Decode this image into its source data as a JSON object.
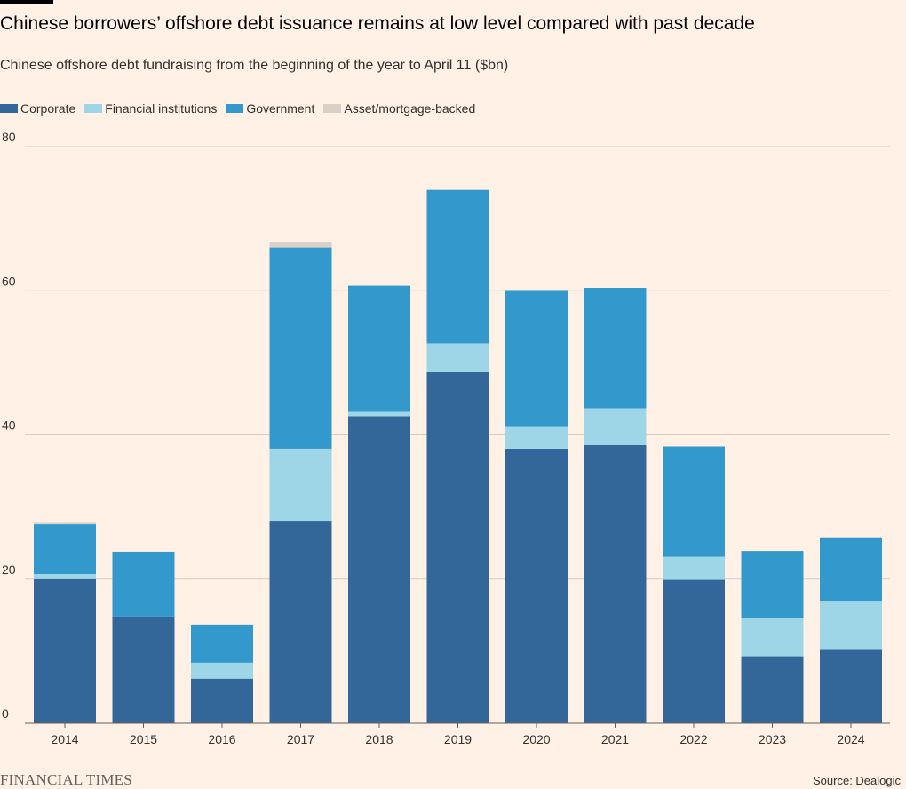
{
  "header": {
    "title": "Chinese borrowers’ offshore debt issuance remains at low level compared with past decade",
    "subtitle": "Chinese offshore debt fundraising from the beginning of the year to April 11 ($bn)"
  },
  "footer": {
    "brand": "FINANCIAL TIMES",
    "source": "Source: Dealogic"
  },
  "chart_data": {
    "type": "bar",
    "stacked": true,
    "title": "Chinese borrowers’ offshore debt issuance remains at low level compared with past decade",
    "subtitle": "Chinese offshore debt fundraising from the beginning of the year to April 11 ($bn)",
    "xlabel": "",
    "ylabel": "",
    "ylim": [
      0,
      80
    ],
    "yticks": [
      0,
      20,
      40,
      60,
      80
    ],
    "grid": true,
    "legend_position": "top-left",
    "categories": [
      "2014",
      "2015",
      "2016",
      "2017",
      "2018",
      "2019",
      "2020",
      "2021",
      "2022",
      "2023",
      "2024"
    ],
    "series": [
      {
        "name": "Corporate",
        "color": "#336699",
        "values": [
          20.0,
          14.8,
          6.2,
          28.1,
          42.6,
          48.7,
          38.1,
          38.6,
          19.9,
          9.3,
          10.3
        ]
      },
      {
        "name": "Financial institutions",
        "color": "#9ed6e8",
        "values": [
          0.7,
          0.0,
          2.2,
          10.0,
          0.6,
          4.0,
          3.0,
          5.1,
          3.2,
          5.3,
          6.7
        ]
      },
      {
        "name": "Government",
        "color": "#3399cc",
        "values": [
          6.9,
          9.0,
          5.3,
          27.9,
          17.5,
          21.3,
          19.0,
          16.7,
          15.3,
          9.3,
          8.8
        ]
      },
      {
        "name": "Asset/mortgage-backed",
        "color": "#dad0c6",
        "values": [
          0.2,
          0.0,
          0.0,
          0.8,
          0.0,
          0.0,
          0.0,
          0.0,
          0.0,
          0.0,
          0.0
        ]
      }
    ]
  }
}
